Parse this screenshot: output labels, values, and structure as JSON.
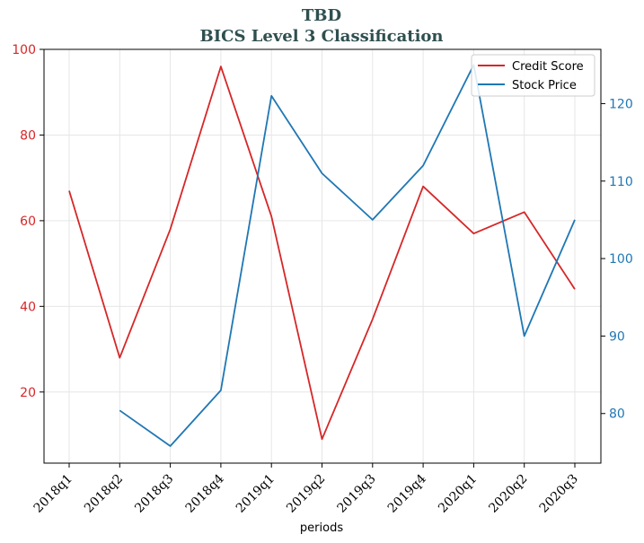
{
  "chart_data": {
    "type": "line",
    "title": "TBD",
    "subtitle": "BICS Level 3 Classification",
    "xlabel": "periods",
    "categories": [
      "2018q1",
      "2018q2",
      "2018q3",
      "2018q4",
      "2019q1",
      "2019q2",
      "2019q3",
      "2019q4",
      "2020q1",
      "2020q2",
      "2020q3"
    ],
    "series": [
      {
        "name": "Credit Score",
        "axis": "left",
        "color": "#d62728",
        "values": [
          67,
          28,
          58,
          96,
          61,
          9,
          37,
          68,
          57,
          62,
          44
        ]
      },
      {
        "name": "Stock Price",
        "axis": "right",
        "color": "#1f77b4",
        "values": [
          null,
          80.4,
          75.8,
          83.0,
          121.0,
          111.0,
          105.0,
          112.0,
          125.0,
          90.0,
          105.0
        ]
      }
    ],
    "y_left": {
      "ylim": [
        3.4,
        100
      ],
      "ticks": [
        20,
        40,
        60,
        80,
        100
      ]
    },
    "y_right": {
      "ylim": [
        73.6,
        127.0
      ],
      "ticks": [
        80,
        90,
        100,
        110,
        120
      ]
    },
    "grid": true,
    "legend_position": "top-right"
  }
}
